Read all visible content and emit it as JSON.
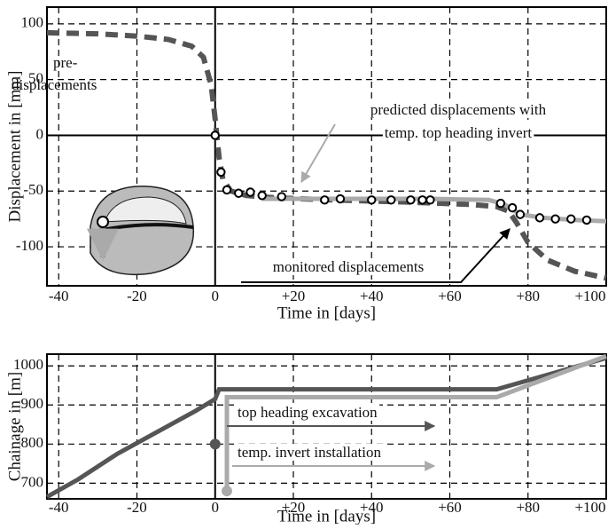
{
  "chart_data": [
    {
      "type": "line",
      "xlabel": "Time in [days]",
      "ylabel": "Displacement in [mm]",
      "xlim": [
        -43,
        100
      ],
      "ylim": [
        -135,
        115
      ],
      "xticks": [
        -40,
        -20,
        0,
        {
          "value": 20,
          "label": "+20"
        },
        {
          "value": 40,
          "label": "+40"
        },
        {
          "value": 60,
          "label": "+60"
        },
        {
          "value": 80,
          "label": "+80"
        },
        {
          "value": 100,
          "label": "+100"
        }
      ],
      "yticks": [
        -100,
        -50,
        0,
        50,
        100
      ],
      "grid": true,
      "series": [
        {
          "color": "#555555",
          "style": "dashed",
          "x": [
            -43,
            -30,
            -20,
            -12,
            -6,
            -3,
            -1,
            0,
            1,
            2,
            4,
            8,
            15,
            30,
            50,
            65,
            72,
            75,
            77,
            80,
            85,
            92,
            100
          ],
          "values": [
            92,
            91,
            89,
            86,
            80,
            70,
            45,
            15,
            -20,
            -40,
            -50,
            -54,
            -56,
            -58,
            -60,
            -62,
            -64,
            -68,
            -78,
            -96,
            -112,
            -122,
            -128
          ]
        },
        {
          "color": "#aaaaaa",
          "style": "solid",
          "x": [
            12,
            25,
            40,
            55,
            70,
            74,
            78,
            84,
            92,
            100
          ],
          "values": [
            -57,
            -57,
            -57,
            -57,
            -58,
            -62,
            -71,
            -74,
            -76,
            -77
          ]
        },
        {
          "color": "#000000",
          "style": "markers",
          "x": [
            0,
            1.5,
            3,
            6,
            9,
            12,
            17,
            28,
            32,
            40,
            45,
            50,
            53,
            55,
            73,
            76,
            78,
            83,
            87,
            91,
            95
          ],
          "values": [
            0,
            -33,
            -49,
            -52,
            -51,
            -54,
            -55,
            -58,
            -57,
            -58,
            -58,
            -58,
            -58,
            -58,
            -61,
            -65,
            -71,
            -74,
            -75,
            -75,
            -76
          ]
        }
      ],
      "annotations": [
        "pre-",
        "displacements",
        "predicted displacements with",
        "temp. top heading invert",
        "monitored displacements"
      ]
    },
    {
      "type": "line",
      "xlabel": "Time in [days]",
      "ylabel": "Chainage in [m]",
      "xlim": [
        -43,
        100
      ],
      "ylim": [
        660,
        1030
      ],
      "xticks": [
        -40,
        -20,
        0,
        {
          "value": 20,
          "label": "+20"
        },
        {
          "value": 40,
          "label": "+40"
        },
        {
          "value": 60,
          "label": "+60"
        },
        {
          "value": 80,
          "label": "+80"
        },
        {
          "value": 100,
          "label": "+100"
        }
      ],
      "yticks": [
        700,
        800,
        900,
        1000
      ],
      "grid": true,
      "series": [
        {
          "color": "#555555",
          "style": "solid",
          "x": [
            -43,
            -35,
            -25,
            -15,
            -5,
            0,
            1,
            72,
            100
          ],
          "values": [
            665,
            710,
            775,
            830,
            885,
            915,
            940,
            940,
            1020
          ]
        },
        {
          "color": "#aaaaaa",
          "style": "solid",
          "x": [
            3,
            3,
            72,
            100
          ],
          "values": [
            680,
            920,
            920,
            1025
          ]
        },
        {
          "color": "#555555",
          "style": "dot",
          "x": [
            0
          ],
          "values": [
            800
          ]
        },
        {
          "color": "#aaaaaa",
          "style": "dot",
          "x": [
            3
          ],
          "values": [
            680
          ]
        }
      ],
      "annotations": [
        "top heading excavation",
        "temp. invert installation"
      ]
    }
  ]
}
